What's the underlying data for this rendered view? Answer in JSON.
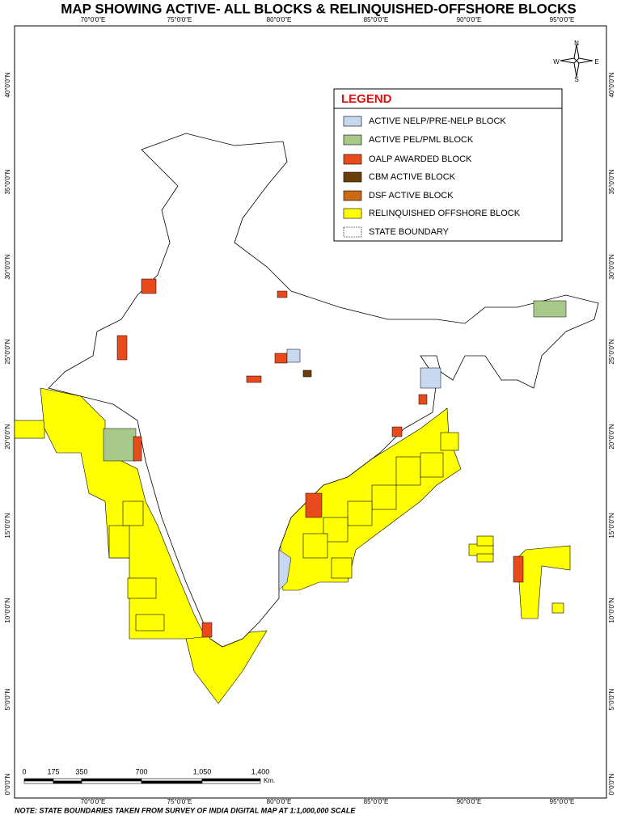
{
  "title": "MAP SHOWING ACTIVE- ALL BLOCKS  & RELINQUISHED-OFFSHORE BLOCKS",
  "longitude_labels": [
    "70°0'0\"E",
    "75°0'0\"E",
    "80°0'0\"E",
    "85°0'0\"E",
    "90°0'0\"E",
    "95°0'0\"E"
  ],
  "latitude_labels": [
    "40°0'0\"N",
    "35°0'0\"N",
    "30°0'0\"N",
    "25°0'0\"N",
    "20°0'0\"N",
    "15°0'0\"N",
    "10°0'0\"N",
    "5°0'0\"N",
    "0°0'0\"N"
  ],
  "compass": {
    "n": "N",
    "e": "E",
    "s": "S",
    "w": "W"
  },
  "legend": {
    "title": "LEGEND",
    "items": [
      {
        "label": "ACTIVE NELP/PRE-NELP BLOCK",
        "color": "#c6d9f1"
      },
      {
        "label": "ACTIVE PEL/PML BLOCK",
        "color": "#a9c98a"
      },
      {
        "label": "OALP AWARDED BLOCK",
        "color": "#e84a1c"
      },
      {
        "label": "CBM ACTIVE BLOCK",
        "color": "#6b3d0a"
      },
      {
        "label": "DSF ACTIVE BLOCK",
        "color": "#cc6a14"
      },
      {
        "label": "RELINQUISHED OFFSHORE BLOCK",
        "color": "#ffff00"
      },
      {
        "label": "STATE BOUNDARY",
        "color": "#ffffff"
      }
    ]
  },
  "scale_bar": {
    "labels": [
      "0",
      "175",
      "350",
      "700",
      "1,050",
      "1,400"
    ],
    "unit": "Km."
  },
  "note": "NOTE: STATE BOUNDARIES TAKEN FROM SURVEY OF INDIA DIGITAL MAP AT 1:1,000,000 SCALE"
}
